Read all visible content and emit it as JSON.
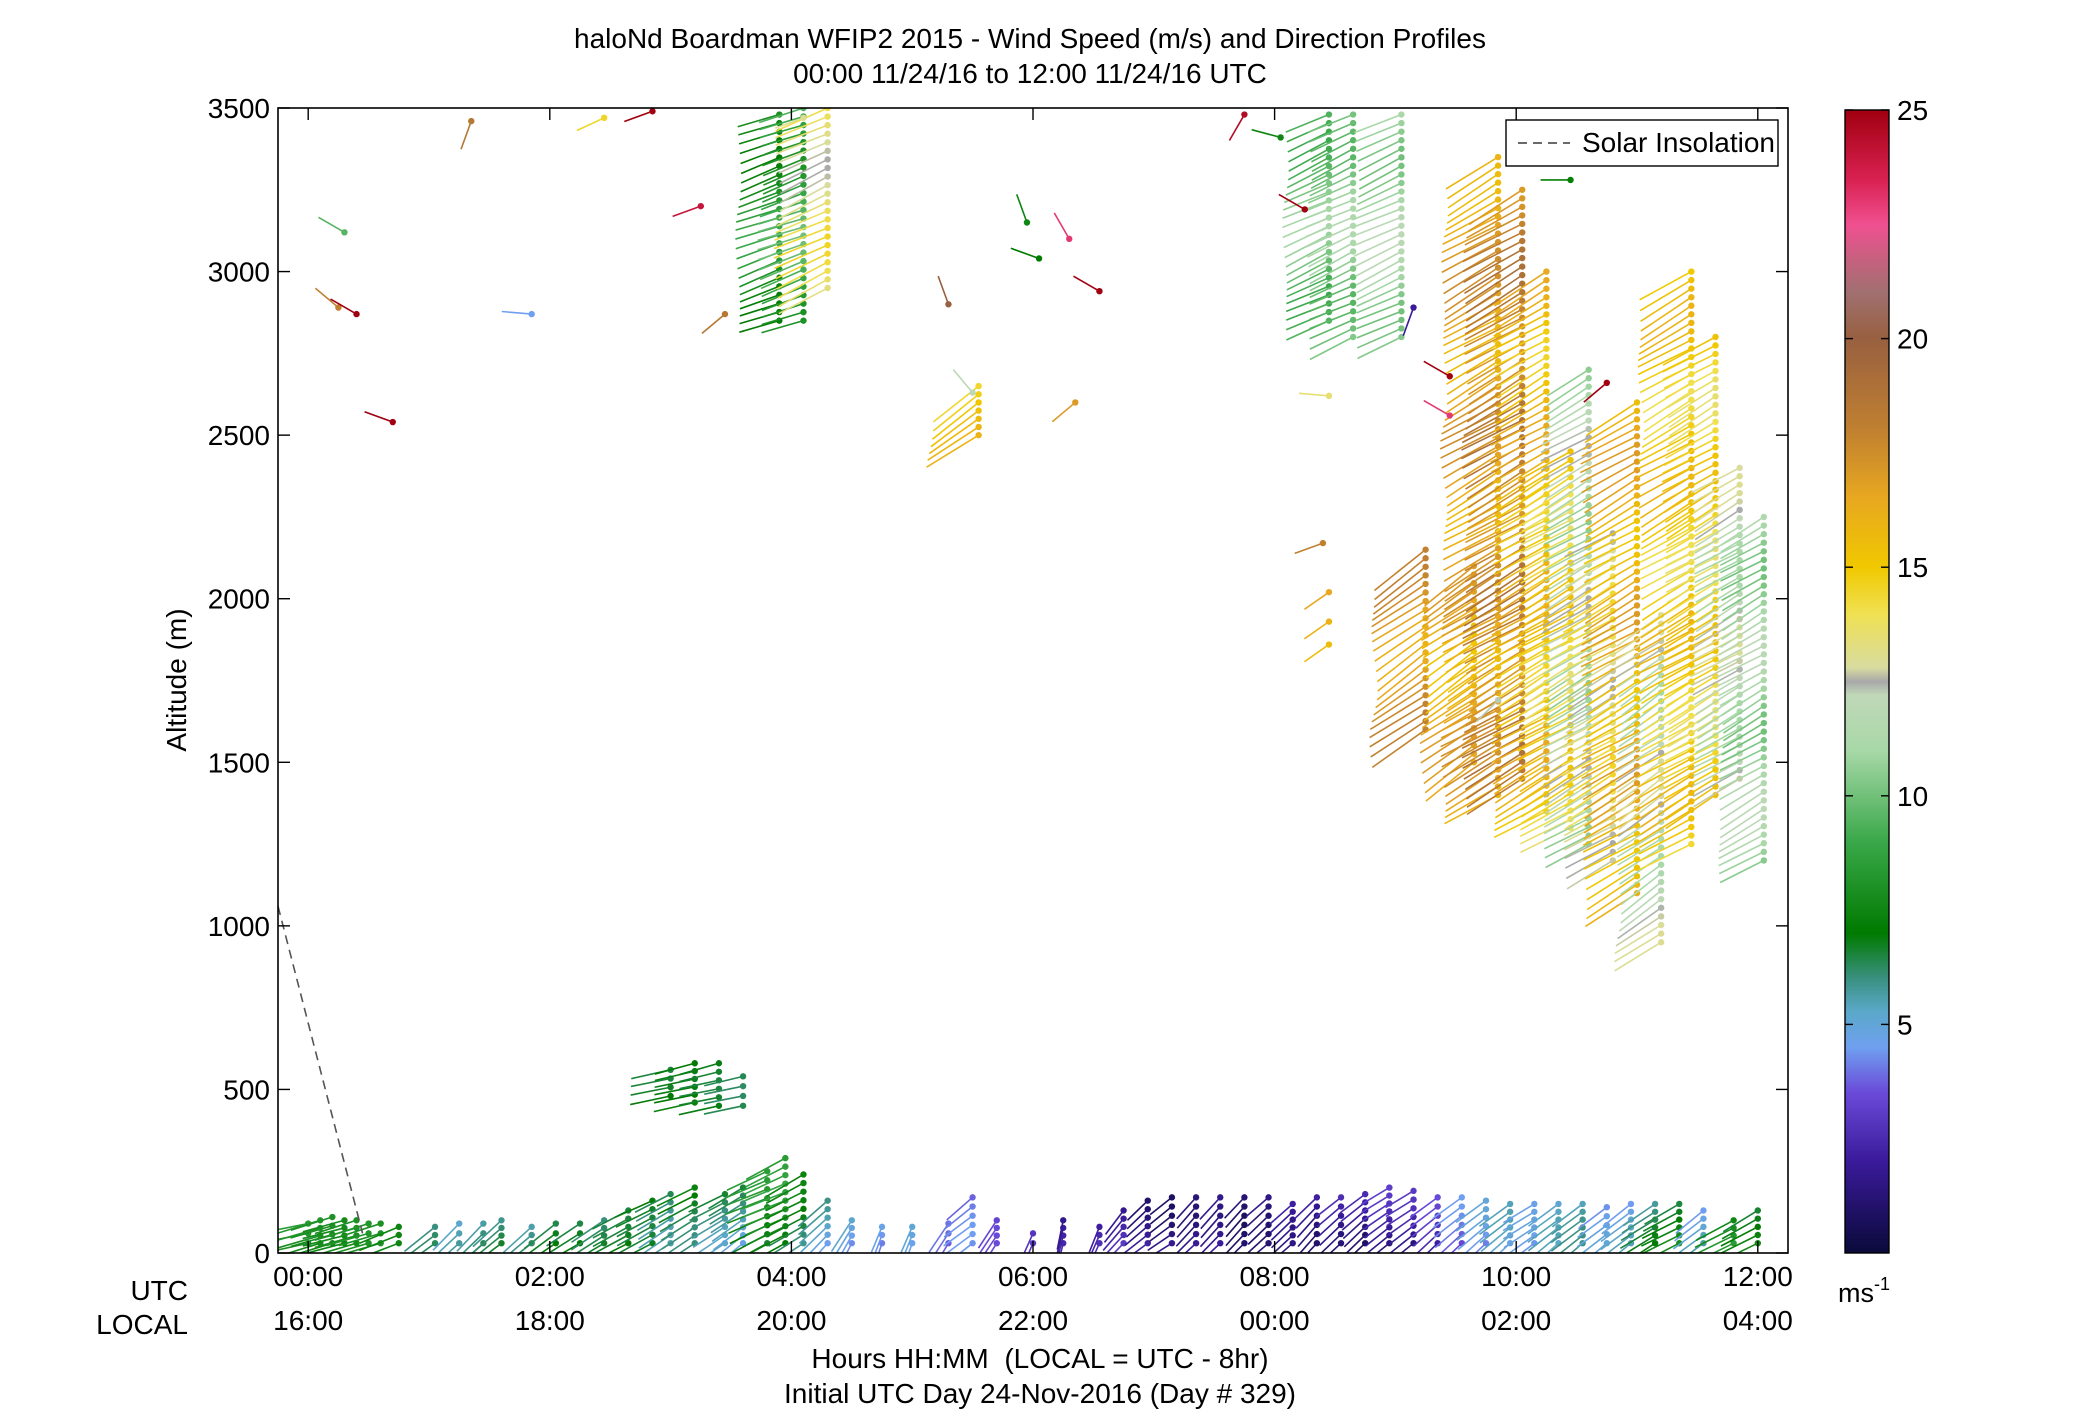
{
  "chart_data": {
    "type": "scatter",
    "title": "haloNd Boardman WFIP2 2015 - Wind Speed (m/s) and Direction Profiles",
    "subtitle": "00:00 11/24/16 to 12:00 11/24/16  UTC",
    "ylabel": "Altitude (m)",
    "ylim": [
      0,
      3500
    ],
    "y_ticks": [
      "0",
      "500",
      "1000",
      "1500",
      "2000",
      "2500",
      "3000",
      "3500"
    ],
    "xlim": [
      -0.25,
      12.25
    ],
    "x_tick_values": [
      0,
      2,
      4,
      6,
      8,
      10,
      12
    ],
    "x_row_labels": [
      "UTC",
      "LOCAL"
    ],
    "utc_ticks": [
      "00:00",
      "02:00",
      "04:00",
      "06:00",
      "08:00",
      "10:00",
      "12:00"
    ],
    "local_ticks": [
      "16:00",
      "18:00",
      "20:00",
      "22:00",
      "00:00",
      "02:00",
      "04:00"
    ],
    "xlabel": "Hours HH:MM  (LOCAL = UTC - 8hr)",
    "xlabel2": "Initial UTC Day 24-Nov-2016 (Day # 329)",
    "legend": {
      "label": "Solar Insolation",
      "location": "top-right",
      "line_color": "#555555",
      "dashed": true
    },
    "colorbar": {
      "ticks": [
        "5",
        "10",
        "15",
        "20",
        "25"
      ],
      "tick_values": [
        5,
        10,
        15,
        20,
        25
      ],
      "range": [
        0,
        25
      ],
      "unit": "ms",
      "unit_exp": "-1",
      "colors": [
        {
          "v": 0,
          "c": "#0a0a3a"
        },
        {
          "v": 2,
          "c": "#3a1a9a"
        },
        {
          "v": 3.5,
          "c": "#6a4ad8"
        },
        {
          "v": 4.5,
          "c": "#6fa0f0"
        },
        {
          "v": 5.3,
          "c": "#5aa8c8"
        },
        {
          "v": 6.0,
          "c": "#3a9080"
        },
        {
          "v": 7,
          "c": "#007a00"
        },
        {
          "v": 9,
          "c": "#3aa84a"
        },
        {
          "v": 11,
          "c": "#a8d8a8"
        },
        {
          "v": 12.2,
          "c": "#c0d8b8"
        },
        {
          "v": 12.5,
          "c": "#a8a8a8"
        },
        {
          "v": 12.8,
          "c": "#d8dca0"
        },
        {
          "v": 14,
          "c": "#f0e050"
        },
        {
          "v": 15,
          "c": "#f0c800"
        },
        {
          "v": 16.5,
          "c": "#e8a820"
        },
        {
          "v": 18,
          "c": "#c08030"
        },
        {
          "v": 20,
          "c": "#986040"
        },
        {
          "v": 21,
          "c": "#a07070"
        },
        {
          "v": 22.5,
          "c": "#f05090"
        },
        {
          "v": 23.5,
          "c": "#d82050"
        },
        {
          "v": 25,
          "c": "#a00010"
        }
      ]
    },
    "solar_insolation": {
      "t": [
        -0.25,
        0.45
      ],
      "y": [
        1060,
        60
      ]
    },
    "profiles": [
      {
        "t": 0.0,
        "y0": 30,
        "y1": 90,
        "s": 7.5,
        "dir": 255
      },
      {
        "t": 0.1,
        "y0": 30,
        "y1": 100,
        "s": 7.2,
        "dir": 250
      },
      {
        "t": 0.2,
        "y0": 30,
        "y1": 110,
        "s": 7.0,
        "dir": 250
      },
      {
        "t": 0.3,
        "y0": 30,
        "y1": 100,
        "s": 6.8,
        "dir": 252
      },
      {
        "t": 0.4,
        "y0": 30,
        "y1": 100,
        "s": 7.0,
        "dir": 250
      },
      {
        "t": 0.5,
        "y0": 30,
        "y1": 90,
        "s": 7.2,
        "dir": 250
      },
      {
        "t": 0.6,
        "y0": 30,
        "y1": 90,
        "s": 7.0,
        "dir": 250
      },
      {
        "t": 0.75,
        "y0": 30,
        "y1": 80,
        "s": 6.5,
        "dir": 245
      },
      {
        "t": 1.05,
        "y0": 30,
        "y1": 80,
        "s": 5.3,
        "dir": 230
      },
      {
        "t": 1.25,
        "y0": 30,
        "y1": 90,
        "s": 4.8,
        "dir": 225
      },
      {
        "t": 1.45,
        "y0": 30,
        "y1": 90,
        "s": 5.5,
        "dir": 225
      },
      {
        "t": 1.6,
        "y0": 30,
        "y1": 100,
        "s": 6.0,
        "dir": 230
      },
      {
        "t": 1.85,
        "y0": 30,
        "y1": 80,
        "s": 5.8,
        "dir": 230
      },
      {
        "t": 2.05,
        "y0": 30,
        "y1": 90,
        "s": 7.0,
        "dir": 235
      },
      {
        "t": 2.25,
        "y0": 30,
        "y1": 90,
        "s": 7.2,
        "dir": 240
      },
      {
        "t": 2.45,
        "y0": 30,
        "y1": 100,
        "s": 7.0,
        "dir": 240
      },
      {
        "t": 2.65,
        "y0": 30,
        "y1": 130,
        "s": 7.5,
        "dir": 245
      },
      {
        "t": 2.85,
        "y0": 30,
        "y1": 160,
        "s": 7.5,
        "dir": 245
      },
      {
        "t": 3.0,
        "y0": 30,
        "y1": 180,
        "s": 6.5,
        "dir": 240
      },
      {
        "t": 3.2,
        "y0": 30,
        "y1": 200,
        "s": 7.0,
        "dir": 240
      },
      {
        "t": 3.45,
        "y0": 30,
        "y1": 180,
        "s": 6.2,
        "dir": 240
      },
      {
        "t": 3.6,
        "y0": 30,
        "y1": 200,
        "s": 5.8,
        "dir": 235
      },
      {
        "t": 3.8,
        "y0": 30,
        "y1": 250,
        "s": 7.5,
        "dir": 245
      },
      {
        "t": 3.95,
        "y0": 30,
        "y1": 290,
        "s": 7.8,
        "dir": 245
      },
      {
        "t": 4.1,
        "y0": 30,
        "y1": 240,
        "s": 6.5,
        "dir": 240
      },
      {
        "t": 4.3,
        "y0": 30,
        "y1": 160,
        "s": 5.0,
        "dir": 225
      },
      {
        "t": 4.5,
        "y0": 30,
        "y1": 100,
        "s": 4.5,
        "dir": 210
      },
      {
        "t": 4.75,
        "y0": 30,
        "y1": 80,
        "s": 4.0,
        "dir": 200
      },
      {
        "t": 5.0,
        "y0": 30,
        "y1": 80,
        "s": 4.2,
        "dir": 200
      },
      {
        "t": 5.3,
        "y0": 30,
        "y1": 90,
        "s": 3.0,
        "dir": 210
      },
      {
        "t": 5.5,
        "y0": 30,
        "y1": 170,
        "s": 3.5,
        "dir": 230
      },
      {
        "t": 5.7,
        "y0": 30,
        "y1": 100,
        "s": 2.5,
        "dir": 210
      },
      {
        "t": 6.0,
        "y0": 30,
        "y1": 60,
        "s": 2.0,
        "dir": 200
      },
      {
        "t": 6.25,
        "y0": 30,
        "y1": 100,
        "s": 1.5,
        "dir": 190
      },
      {
        "t": 6.55,
        "y0": 30,
        "y1": 80,
        "s": 2.0,
        "dir": 200
      },
      {
        "t": 6.75,
        "y0": 30,
        "y1": 130,
        "s": 2.5,
        "dir": 220
      },
      {
        "t": 6.95,
        "y0": 30,
        "y1": 160,
        "s": 2.0,
        "dir": 230
      },
      {
        "t": 7.15,
        "y0": 30,
        "y1": 170,
        "s": 1.8,
        "dir": 235
      },
      {
        "t": 7.35,
        "y0": 30,
        "y1": 170,
        "s": 2.2,
        "dir": 225
      },
      {
        "t": 7.55,
        "y0": 30,
        "y1": 170,
        "s": 2.5,
        "dir": 225
      },
      {
        "t": 7.75,
        "y0": 30,
        "y1": 170,
        "s": 1.8,
        "dir": 225
      },
      {
        "t": 7.95,
        "y0": 30,
        "y1": 170,
        "s": 2.0,
        "dir": 230
      },
      {
        "t": 8.15,
        "y0": 30,
        "y1": 150,
        "s": 2.5,
        "dir": 230
      },
      {
        "t": 8.35,
        "y0": 30,
        "y1": 170,
        "s": 2.0,
        "dir": 225
      },
      {
        "t": 8.55,
        "y0": 30,
        "y1": 170,
        "s": 2.2,
        "dir": 230
      },
      {
        "t": 8.75,
        "y0": 30,
        "y1": 180,
        "s": 1.8,
        "dir": 230
      },
      {
        "t": 8.95,
        "y0": 30,
        "y1": 200,
        "s": 2.2,
        "dir": 235
      },
      {
        "t": 9.15,
        "y0": 30,
        "y1": 190,
        "s": 2.0,
        "dir": 235
      },
      {
        "t": 9.35,
        "y0": 30,
        "y1": 170,
        "s": 2.5,
        "dir": 230
      },
      {
        "t": 9.55,
        "y0": 30,
        "y1": 170,
        "s": 3.5,
        "dir": 230
      },
      {
        "t": 9.75,
        "y0": 30,
        "y1": 160,
        "s": 4.0,
        "dir": 230
      },
      {
        "t": 9.95,
        "y0": 30,
        "y1": 150,
        "s": 4.5,
        "dir": 230
      },
      {
        "t": 10.15,
        "y0": 30,
        "y1": 150,
        "s": 3.8,
        "dir": 235
      },
      {
        "t": 10.35,
        "y0": 30,
        "y1": 150,
        "s": 4.5,
        "dir": 230
      },
      {
        "t": 10.55,
        "y0": 30,
        "y1": 150,
        "s": 5.0,
        "dir": 230
      },
      {
        "t": 10.75,
        "y0": 30,
        "y1": 140,
        "s": 4.0,
        "dir": 230
      },
      {
        "t": 10.95,
        "y0": 30,
        "y1": 150,
        "s": 4.5,
        "dir": 230
      },
      {
        "t": 11.15,
        "y0": 30,
        "y1": 150,
        "s": 6.0,
        "dir": 235
      },
      {
        "t": 11.35,
        "y0": 30,
        "y1": 150,
        "s": 7.0,
        "dir": 240
      },
      {
        "t": 11.55,
        "y0": 30,
        "y1": 130,
        "s": 5.0,
        "dir": 230
      },
      {
        "t": 11.8,
        "y0": 30,
        "y1": 100,
        "s": 8.0,
        "dir": 240
      },
      {
        "t": 12.0,
        "y0": 30,
        "y1": 130,
        "s": 7.5,
        "dir": 240
      },
      {
        "t": 3.0,
        "y0": 480,
        "y1": 560,
        "s": 7.5,
        "dir": 255
      },
      {
        "t": 3.2,
        "y0": 460,
        "y1": 580,
        "s": 7.8,
        "dir": 255
      },
      {
        "t": 3.4,
        "y0": 450,
        "y1": 580,
        "s": 7.5,
        "dir": 255
      },
      {
        "t": 3.6,
        "y0": 450,
        "y1": 540,
        "s": 7.2,
        "dir": 255
      },
      {
        "t": 3.9,
        "y0": 2850,
        "y1": 3480,
        "s": 8.0,
        "dir": 250
      },
      {
        "t": 4.1,
        "y0": 2850,
        "y1": 3500,
        "s": 9.0,
        "dir": 250
      },
      {
        "t": 4.3,
        "y0": 2950,
        "y1": 3500,
        "s": 13.5,
        "dir": 245
      },
      {
        "t": 5.55,
        "y0": 2500,
        "y1": 2650,
        "s": 15.0,
        "dir": 235
      },
      {
        "t": 8.45,
        "y0": 2850,
        "y1": 3480,
        "s": 10.0,
        "dir": 245
      },
      {
        "t": 8.65,
        "y0": 2800,
        "y1": 3480,
        "s": 10.5,
        "dir": 245
      },
      {
        "t": 9.05,
        "y0": 2800,
        "y1": 3480,
        "s": 11.0,
        "dir": 245
      },
      {
        "t": 9.25,
        "y0": 1600,
        "y1": 2150,
        "s": 17.0,
        "dir": 235
      },
      {
        "t": 9.65,
        "y0": 1500,
        "y1": 2100,
        "s": 16.0,
        "dir": 235
      },
      {
        "t": 9.85,
        "y0": 1400,
        "y1": 3350,
        "s": 16.5,
        "dir": 240
      },
      {
        "t": 10.05,
        "y0": 1450,
        "y1": 3250,
        "s": 18.0,
        "dir": 240
      },
      {
        "t": 10.25,
        "y0": 1350,
        "y1": 3000,
        "s": 15.5,
        "dir": 240
      },
      {
        "t": 10.45,
        "y0": 1300,
        "y1": 2450,
        "s": 14.5,
        "dir": 240
      },
      {
        "t": 10.6,
        "y0": 1250,
        "y1": 2700,
        "s": 11.5,
        "dir": 240
      },
      {
        "t": 10.8,
        "y0": 1200,
        "y1": 2200,
        "s": 13.5,
        "dir": 240
      },
      {
        "t": 11.0,
        "y0": 1100,
        "y1": 2600,
        "s": 16.0,
        "dir": 240
      },
      {
        "t": 11.2,
        "y0": 950,
        "y1": 1950,
        "s": 12.0,
        "dir": 235
      },
      {
        "t": 11.45,
        "y0": 1250,
        "y1": 3000,
        "s": 15.0,
        "dir": 240
      },
      {
        "t": 11.65,
        "y0": 1400,
        "y1": 2800,
        "s": 14.5,
        "dir": 240
      },
      {
        "t": 11.85,
        "y0": 1450,
        "y1": 2400,
        "s": 12.0,
        "dir": 240
      },
      {
        "t": 12.05,
        "y0": 1200,
        "y1": 2250,
        "s": 11.0,
        "dir": 240
      }
    ],
    "isolated_barbs": [
      {
        "t": 0.3,
        "y": 3120,
        "s": 9.5,
        "dir": 300
      },
      {
        "t": 0.25,
        "y": 2890,
        "s": 18.0,
        "dir": 310
      },
      {
        "t": 0.4,
        "y": 2870,
        "s": 25.0,
        "dir": 300
      },
      {
        "t": 0.7,
        "y": 2540,
        "s": 25.0,
        "dir": 290
      },
      {
        "t": 1.35,
        "y": 3460,
        "s": 18.5,
        "dir": 200
      },
      {
        "t": 1.85,
        "y": 2870,
        "s": 4.5,
        "dir": 275
      },
      {
        "t": 2.45,
        "y": 3470,
        "s": 14.5,
        "dir": 245
      },
      {
        "t": 2.85,
        "y": 3490,
        "s": 25.0,
        "dir": 250
      },
      {
        "t": 3.25,
        "y": 3200,
        "s": 24.0,
        "dir": 250
      },
      {
        "t": 3.45,
        "y": 2870,
        "s": 18.5,
        "dir": 230
      },
      {
        "t": 4.1,
        "y": 3470,
        "s": 13.0,
        "dir": 250
      },
      {
        "t": 5.3,
        "y": 2900,
        "s": 20.0,
        "dir": 340
      },
      {
        "t": 5.5,
        "y": 2630,
        "s": 12.0,
        "dir": 320
      },
      {
        "t": 5.95,
        "y": 3150,
        "s": 7.5,
        "dir": 340
      },
      {
        "t": 6.05,
        "y": 3040,
        "s": 7.0,
        "dir": 290
      },
      {
        "t": 6.3,
        "y": 3100,
        "s": 23.0,
        "dir": 330
      },
      {
        "t": 6.55,
        "y": 2940,
        "s": 25.0,
        "dir": 300
      },
      {
        "t": 6.35,
        "y": 2600,
        "s": 17.0,
        "dir": 230
      },
      {
        "t": 7.75,
        "y": 3480,
        "s": 24.5,
        "dir": 210
      },
      {
        "t": 8.05,
        "y": 3410,
        "s": 7.5,
        "dir": 285
      },
      {
        "t": 8.25,
        "y": 3190,
        "s": 25.0,
        "dir": 300
      },
      {
        "t": 8.45,
        "y": 2620,
        "s": 13.5,
        "dir": 275
      },
      {
        "t": 8.4,
        "y": 2170,
        "s": 18.0,
        "dir": 250
      },
      {
        "t": 8.45,
        "y": 2020,
        "s": 16.5,
        "dir": 235
      },
      {
        "t": 8.45,
        "y": 1930,
        "s": 16.0,
        "dir": 235
      },
      {
        "t": 8.45,
        "y": 1860,
        "s": 15.5,
        "dir": 235
      },
      {
        "t": 9.15,
        "y": 2890,
        "s": 2.0,
        "dir": 200
      },
      {
        "t": 9.45,
        "y": 2680,
        "s": 25.0,
        "dir": 300
      },
      {
        "t": 9.45,
        "y": 2560,
        "s": 23.0,
        "dir": 300
      },
      {
        "t": 9.85,
        "y": 1690,
        "s": 12.3,
        "dir": 225
      },
      {
        "t": 10.45,
        "y": 3280,
        "s": 7.2,
        "dir": 270
      },
      {
        "t": 10.75,
        "y": 2660,
        "s": 25.0,
        "dir": 230
      }
    ]
  }
}
